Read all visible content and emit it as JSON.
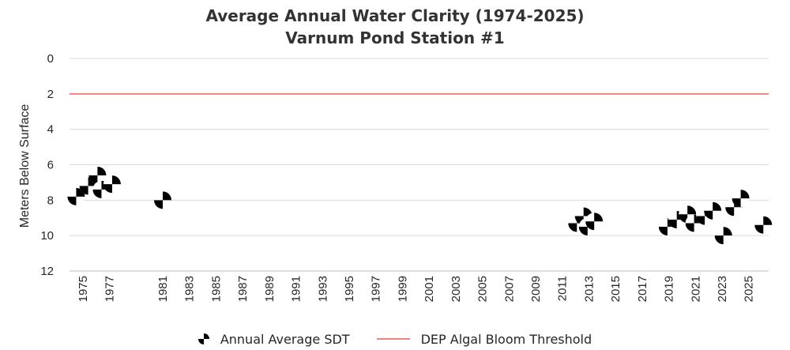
{
  "chart_data": {
    "type": "scatter",
    "title": "Average Annual Water Clarity (1974-2025)",
    "subtitle": "Varnum Pond Station #1",
    "xlabel": "",
    "ylabel": "Meters Below Surface",
    "xlim": [
      1974,
      2026.5
    ],
    "ylim": [
      0,
      12
    ],
    "y_inverted": true,
    "x_ticks": [
      "1975",
      "1977",
      "1981",
      "1983",
      "1985",
      "1987",
      "1989",
      "1991",
      "1993",
      "1995",
      "1997",
      "1999",
      "2001",
      "2003",
      "2005",
      "2007",
      "2009",
      "2011",
      "2013",
      "2015",
      "2017",
      "2019",
      "2021",
      "2023",
      "2025"
    ],
    "y_ticks": [
      "0",
      "2",
      "4",
      "6",
      "8",
      "10",
      "12"
    ],
    "grid": true,
    "legend_position": "bottom",
    "series": [
      {
        "name": "Annual Average SDT",
        "marker": "checkered-circle",
        "points": [
          {
            "x": 1974.5,
            "y": 7.8
          },
          {
            "x": 1975.4,
            "y": 7.2
          },
          {
            "x": 1976.1,
            "y": 6.6
          },
          {
            "x": 1976.4,
            "y": 7.4
          },
          {
            "x": 1977.2,
            "y": 7.1
          },
          {
            "x": 1981.0,
            "y": 8.0
          },
          {
            "x": 2012.1,
            "y": 9.3
          },
          {
            "x": 2012.6,
            "y": 8.9
          },
          {
            "x": 2012.9,
            "y": 9.5
          },
          {
            "x": 2013.4,
            "y": 9.2
          },
          {
            "x": 2018.9,
            "y": 9.5
          },
          {
            "x": 2019.6,
            "y": 9.1
          },
          {
            "x": 2020.4,
            "y": 8.8
          },
          {
            "x": 2020.9,
            "y": 9.3
          },
          {
            "x": 2021.7,
            "y": 8.9
          },
          {
            "x": 2022.3,
            "y": 8.6
          },
          {
            "x": 2023.1,
            "y": 10.0
          },
          {
            "x": 2023.9,
            "y": 8.4
          },
          {
            "x": 2024.4,
            "y": 7.9
          },
          {
            "x": 2026.1,
            "y": 9.4
          }
        ]
      },
      {
        "name": "DEP Algal Bloom Threshold",
        "type": "hline",
        "y": 2,
        "color": "#e8877f"
      }
    ]
  },
  "legend": {
    "sdt_label": "Annual Average SDT",
    "threshold_label": "DEP Algal Bloom Threshold"
  },
  "colors": {
    "grid": "#d9d9d9",
    "axis": "#bfbfbf",
    "threshold": "#e8877f",
    "marker_dark": "#000000",
    "marker_light": "#ffffff"
  }
}
